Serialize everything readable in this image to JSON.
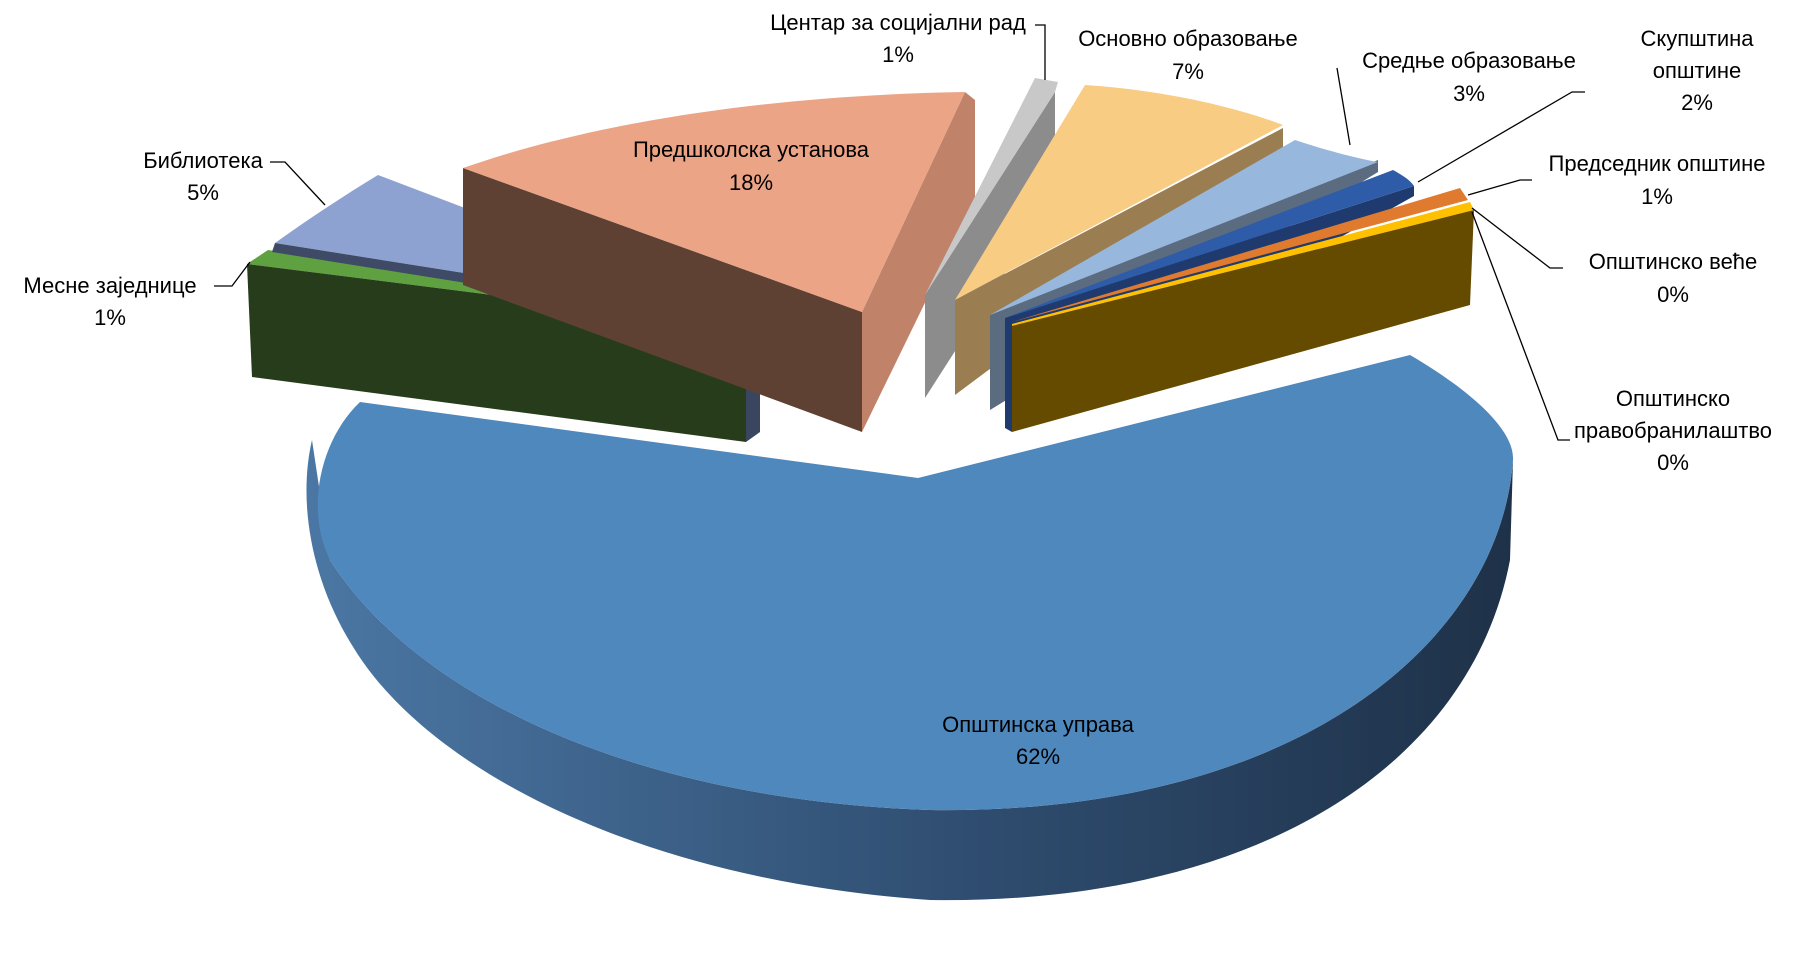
{
  "chart_data": {
    "type": "pie",
    "style": "3d-exploded",
    "title": "",
    "slices": [
      {
        "label": "Општинска управа",
        "value": 62,
        "percent_label": "62%",
        "color": "#4F81BD"
      },
      {
        "label": "Месне заједнице",
        "value": 1,
        "percent_label": "1%",
        "color": "#4E9A3A"
      },
      {
        "label": "Библиотека",
        "value": 5,
        "percent_label": "5%",
        "color": "#8EA2D2"
      },
      {
        "label": "Предшколска установа",
        "value": 18,
        "percent_label": "18%",
        "color": "#EBA486"
      },
      {
        "label": "Центар за социјални рад",
        "value": 1,
        "percent_label": "1%",
        "color": "#BFBFBF"
      },
      {
        "label": "Основно образовање",
        "value": 7,
        "percent_label": "7%",
        "color": "#F9CC84"
      },
      {
        "label": "Средње образовање",
        "value": 3,
        "percent_label": "3%",
        "color": "#97B7DD"
      },
      {
        "label": "Скупштина општине",
        "value": 2,
        "percent_label": "2%",
        "color": "#2E5CA8"
      },
      {
        "label": "Председник општине",
        "value": 1,
        "percent_label": "1%",
        "color": "#E07A2E"
      },
      {
        "label": "Општинско веће",
        "value": 0,
        "percent_label": "0%",
        "color": "#FFC000"
      },
      {
        "label": "Општинско правобранилаштво",
        "value": 0,
        "percent_label": "0%",
        "color": "#8C6A1A"
      }
    ]
  }
}
